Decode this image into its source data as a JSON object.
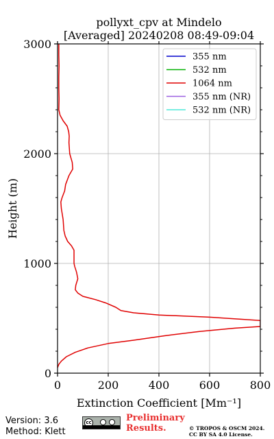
{
  "chart_data": {
    "type": "line",
    "title_line1": "pollyxt_cpv at Mindelo",
    "title_line2": "[Averaged] 20240208 08:49-09:04",
    "xlabel": "Extinction Coefficient [Mm⁻¹]",
    "ylabel": "Height (m)",
    "xlim": [
      0,
      800
    ],
    "ylim": [
      0,
      3000
    ],
    "x_ticks": [
      "0",
      "200",
      "400",
      "600",
      "800"
    ],
    "y_ticks": [
      "0",
      "1000",
      "2000",
      "3000"
    ],
    "grid": true,
    "legend_position": "top-right",
    "series": [
      {
        "name": "355 nm",
        "color": "#0000cc",
        "points": []
      },
      {
        "name": "532 nm",
        "color": "#00b000",
        "points": []
      },
      {
        "name": "1064 nm",
        "color": "#e00000",
        "points": [
          [
            0,
            50
          ],
          [
            5,
            80
          ],
          [
            15,
            110
          ],
          [
            35,
            150
          ],
          [
            70,
            190
          ],
          [
            120,
            230
          ],
          [
            200,
            270
          ],
          [
            300,
            300
          ],
          [
            420,
            340
          ],
          [
            560,
            380
          ],
          [
            700,
            410
          ],
          [
            800,
            425
          ],
          [
            800,
            480
          ],
          [
            600,
            510
          ],
          [
            400,
            530
          ],
          [
            300,
            550
          ],
          [
            250,
            570
          ],
          [
            230,
            600
          ],
          [
            190,
            640
          ],
          [
            150,
            670
          ],
          [
            100,
            700
          ],
          [
            80,
            730
          ],
          [
            70,
            760
          ],
          [
            72,
            800
          ],
          [
            80,
            860
          ],
          [
            75,
            920
          ],
          [
            68,
            970
          ],
          [
            65,
            1000
          ],
          [
            65,
            1060
          ],
          [
            65,
            1120
          ],
          [
            55,
            1160
          ],
          [
            40,
            1200
          ],
          [
            30,
            1250
          ],
          [
            25,
            1300
          ],
          [
            22,
            1400
          ],
          [
            15,
            1500
          ],
          [
            13,
            1560
          ],
          [
            18,
            1600
          ],
          [
            28,
            1660
          ],
          [
            32,
            1720
          ],
          [
            45,
            1800
          ],
          [
            60,
            1860
          ],
          [
            58,
            1920
          ],
          [
            48,
            2000
          ],
          [
            45,
            2100
          ],
          [
            46,
            2160
          ],
          [
            44,
            2200
          ],
          [
            38,
            2250
          ],
          [
            22,
            2300
          ],
          [
            10,
            2350
          ],
          [
            5,
            2400
          ],
          [
            6,
            2500
          ],
          [
            5,
            2600
          ],
          [
            5,
            2700
          ],
          [
            6,
            2800
          ],
          [
            5,
            2900
          ],
          [
            5,
            3000
          ]
        ]
      },
      {
        "name": "355 nm (NR)",
        "color": "#9b5fe0",
        "points": []
      },
      {
        "name": "532 nm (NR)",
        "color": "#4de8d8",
        "points": []
      }
    ]
  },
  "footer": {
    "version": "Version: 3.6",
    "method": "Method: Klett",
    "preliminary_line1": "Preliminary",
    "preliminary_line2": "Results.",
    "license_line1": "© TROPOS & OSCM 2024.",
    "license_line2": "CC BY SA 4.0 License.",
    "cc_badge": {
      "mark": "cc",
      "icons": [
        "by-icon",
        "sa-icon"
      ],
      "strip_labels": [
        "BY",
        "SA"
      ]
    }
  }
}
